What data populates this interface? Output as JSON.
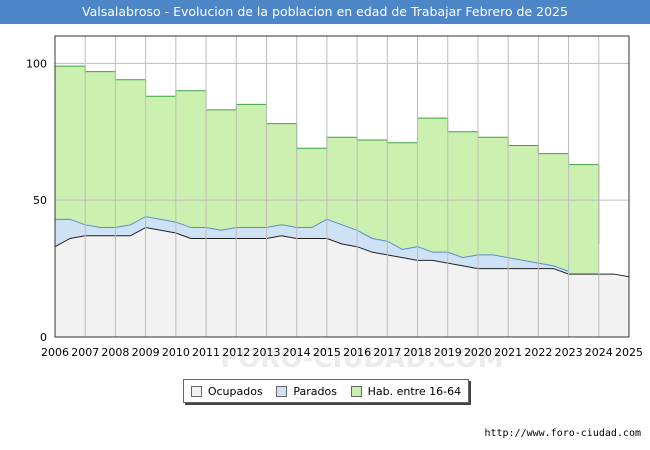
{
  "title": "Valsalabroso - Evolucion de la poblacion en edad de Trabajar Febrero de 2025",
  "watermark": "FORO-CIUDAD.COM",
  "source": "http://www.foro-ciudad.com",
  "legend": [
    {
      "label": "Ocupados",
      "color": "#f2f2f2"
    },
    {
      "label": "Parados",
      "color": "#cfe2f5"
    },
    {
      "label": "Hab. entre 16-64",
      "color": "#cbf0b0"
    }
  ],
  "chart_data": {
    "type": "area",
    "title": "Valsalabroso - Evolucion de la poblacion en edad de Trabajar Febrero de 2025",
    "xlabel": "",
    "ylabel": "",
    "xlim": [
      2006,
      2025
    ],
    "ylim": [
      0,
      110
    ],
    "yticks": [
      0,
      50,
      100
    ],
    "xticks": [
      "2006",
      "2007",
      "2008",
      "2009",
      "2010",
      "2011",
      "2012",
      "2013",
      "2014",
      "2015",
      "2016",
      "2017",
      "2018",
      "2019",
      "2020",
      "2021",
      "2022",
      "2023",
      "2024",
      "2025"
    ],
    "grid": true,
    "series": [
      {
        "name": "Hab. entre 16-64",
        "color": "#cbf0b0",
        "line": "#3fa33f",
        "x": [
          2006,
          2007,
          2008,
          2009,
          2010,
          2011,
          2012,
          2013,
          2014,
          2015,
          2016,
          2017,
          2018,
          2019,
          2020,
          2021,
          2022,
          2023,
          2024
        ],
        "values": [
          99,
          97,
          94,
          88,
          90,
          83,
          85,
          78,
          69,
          73,
          72,
          71,
          80,
          75,
          73,
          70,
          67,
          63,
          34
        ]
      },
      {
        "name": "Parados",
        "color": "#cfe2f5",
        "line": "#5a8fc7",
        "x": [
          2006,
          2006.5,
          2007,
          2007.5,
          2008,
          2008.5,
          2009,
          2009.5,
          2010,
          2010.5,
          2011,
          2011.5,
          2012,
          2012.5,
          2013,
          2013.5,
          2014,
          2014.5,
          2015,
          2015.5,
          2016,
          2016.5,
          2017,
          2017.5,
          2018,
          2018.5,
          2019,
          2019.5,
          2020,
          2020.5,
          2021,
          2021.5,
          2022,
          2022.5,
          2023
        ],
        "values": [
          43,
          43,
          41,
          40,
          40,
          41,
          44,
          43,
          42,
          40,
          40,
          39,
          40,
          40,
          40,
          41,
          40,
          40,
          43,
          41,
          39,
          36,
          35,
          32,
          33,
          31,
          31,
          29,
          30,
          30,
          29,
          28,
          27,
          26,
          24
        ]
      },
      {
        "name": "Ocupados",
        "color": "#f2f2f2",
        "line": "#222222",
        "x": [
          2006,
          2006.5,
          2007,
          2007.5,
          2008,
          2008.5,
          2009,
          2009.5,
          2010,
          2010.5,
          2011,
          2011.5,
          2012,
          2012.5,
          2013,
          2013.5,
          2014,
          2014.5,
          2015,
          2015.5,
          2016,
          2016.5,
          2017,
          2017.5,
          2018,
          2018.5,
          2019,
          2019.5,
          2020,
          2020.5,
          2021,
          2021.5,
          2022,
          2022.5,
          2023,
          2023.5,
          2024,
          2024.5,
          2025
        ],
        "values": [
          33,
          36,
          37,
          37,
          37,
          37,
          40,
          39,
          38,
          36,
          36,
          36,
          36,
          36,
          36,
          37,
          36,
          36,
          36,
          34,
          33,
          31,
          30,
          29,
          28,
          28,
          27,
          26,
          25,
          25,
          25,
          25,
          25,
          25,
          23,
          23,
          23,
          23,
          22
        ]
      }
    ]
  }
}
